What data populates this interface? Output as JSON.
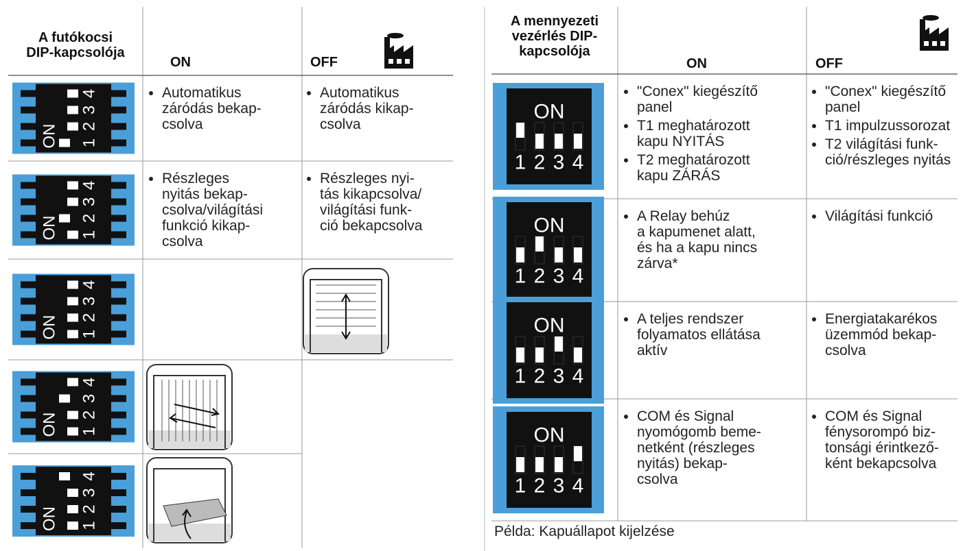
{
  "left_table": {
    "header": [
      "A futókocsi\nDIP-kapcsolója",
      "ON",
      "OFF"
    ],
    "rows": [
      {
        "dip": {
          "on_label": "ON",
          "numbers": [
            "1",
            "2",
            "3",
            "4"
          ],
          "switches": [
            true,
            false,
            false,
            false
          ]
        },
        "on": [
          "Automatikus\nzáródás bekap-\ncsolva"
        ],
        "off": [
          "Automatikus\nzáródás kikap-\ncsolva"
        ]
      },
      {
        "dip": {
          "on_label": "ON",
          "numbers": [
            "1",
            "2",
            "3",
            "4"
          ],
          "switches": [
            false,
            true,
            false,
            false
          ]
        },
        "on": [
          "Részleges\nnyitás bekap-\ncsolva/világítási\nfunkció kikap-\ncsolva"
        ],
        "off": [
          "Részleges nyi-\ntás kikapcsolva/\nvilágítási funk-\nció bekapcsolva"
        ]
      },
      {
        "dip": {
          "on_label": "ON",
          "numbers": [
            "1",
            "2",
            "3",
            "4"
          ],
          "switches": [
            false,
            false,
            false,
            false
          ]
        },
        "on": [],
        "off": []
      },
      {
        "dip": {
          "on_label": "ON",
          "numbers": [
            "1",
            "2",
            "3",
            "4"
          ],
          "switches": [
            false,
            false,
            true,
            false
          ]
        },
        "on": [],
        "off": []
      },
      {
        "dip": {
          "on_label": "ON",
          "numbers": [
            "1",
            "2",
            "3",
            "4"
          ],
          "switches": [
            false,
            false,
            false,
            true
          ]
        },
        "on": [],
        "off": []
      }
    ]
  },
  "right_table": {
    "header": [
      "A mennyezeti\nvezérlés DIP-\nkapcsolója",
      "ON",
      "OFF"
    ],
    "rows": [
      {
        "dip": {
          "on_label": "ON",
          "numbers": [
            "1",
            "2",
            "3",
            "4"
          ],
          "switches": [
            true,
            false,
            false,
            false
          ]
        },
        "on": [
          "\"Conex\" kiegészítő\npanel",
          "T1 meghatározott\nkapu NYITÁS",
          "T2 meghatározott\nkapu ZÁRÁS"
        ],
        "off": [
          "\"Conex\" kiegészítő\npanel",
          "T1 impulzussorozat",
          "T2 világítási funk-\nció/részleges nyitás"
        ]
      },
      {
        "dip": {
          "on_label": "ON",
          "numbers": [
            "1",
            "2",
            "3",
            "4"
          ],
          "switches": [
            false,
            true,
            false,
            false
          ]
        },
        "on": [
          "A Relay behúz\na kapumenet alatt,\nés ha a kapu nincs\nzárva*"
        ],
        "off": [
          "Világítási funkció"
        ]
      },
      {
        "dip": {
          "on_label": "ON",
          "numbers": [
            "1",
            "2",
            "3",
            "4"
          ],
          "switches": [
            false,
            false,
            true,
            false
          ]
        },
        "on": [
          "A teljes rendszer\nfolyamatos ellátása\naktív"
        ],
        "off": [
          "Energiatakarékos\nüzemmód bekap-\ncsolva"
        ]
      },
      {
        "dip": {
          "on_label": "ON",
          "numbers": [
            "1",
            "2",
            "3",
            "4"
          ],
          "switches": [
            false,
            false,
            false,
            true
          ]
        },
        "on": [
          "COM és Signal\nnyomógomb beme-\nnetként (részleges\nnyitás) bekap-\ncsolva"
        ],
        "off": [
          "COM és Signal\nfénysorompó biz-\ntonsági érintkező-\nként bekapcsolva"
        ]
      }
    ]
  },
  "footer": "Példa: Kapuállapot kijelzése"
}
